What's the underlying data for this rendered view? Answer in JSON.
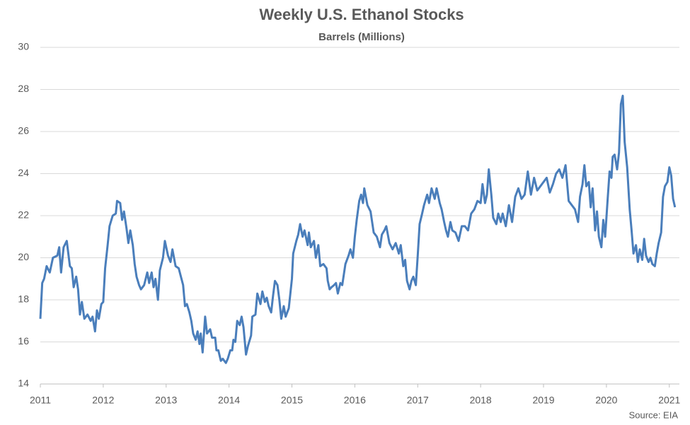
{
  "chart_data": {
    "type": "line",
    "title": "Weekly U.S. Ethanol Stocks",
    "subtitle": "Barrels (Millions)",
    "source": "Source: EIA",
    "xlim": [
      2011,
      2021.16
    ],
    "xticks": [
      2011,
      2012,
      2013,
      2014,
      2015,
      2016,
      2017,
      2018,
      2019,
      2020,
      2021
    ],
    "ylim": [
      14,
      30
    ],
    "yticks": [
      14,
      16,
      18,
      20,
      22,
      24,
      26,
      28,
      30
    ],
    "grid": true,
    "x": [
      2011.0,
      2011.03,
      2011.06,
      2011.1,
      2011.15,
      2011.2,
      2011.27,
      2011.3,
      2011.33,
      2011.37,
      2011.42,
      2011.47,
      2011.5,
      2011.53,
      2011.57,
      2011.6,
      2011.63,
      2011.66,
      2011.7,
      2011.75,
      2011.8,
      2011.83,
      2011.87,
      2011.9,
      2011.93,
      2011.97,
      2012.0,
      2012.03,
      2012.07,
      2012.1,
      2012.15,
      2012.2,
      2012.22,
      2012.27,
      2012.3,
      2012.33,
      2012.37,
      2012.4,
      2012.43,
      2012.47,
      2012.5,
      2012.53,
      2012.57,
      2012.6,
      2012.65,
      2012.7,
      2012.73,
      2012.77,
      2012.8,
      2012.83,
      2012.87,
      2012.9,
      2012.95,
      2012.98,
      2013.03,
      2013.07,
      2013.1,
      2013.15,
      2013.2,
      2013.27,
      2013.3,
      2013.33,
      2013.37,
      2013.4,
      2013.43,
      2013.47,
      2013.5,
      2013.53,
      2013.55,
      2013.58,
      2013.62,
      2013.65,
      2013.7,
      2013.73,
      2013.78,
      2013.8,
      2013.83,
      2013.87,
      2013.9,
      2013.95,
      2013.98,
      2014.02,
      2014.05,
      2014.07,
      2014.1,
      2014.13,
      2014.17,
      2014.2,
      2014.23,
      2014.27,
      2014.3,
      2014.35,
      2014.37,
      2014.42,
      2014.45,
      2014.5,
      2014.53,
      2014.57,
      2014.6,
      2014.63,
      2014.67,
      2014.7,
      2014.73,
      2014.77,
      2014.8,
      2014.83,
      2014.87,
      2014.9,
      2014.95,
      2015.0,
      2015.02,
      2015.07,
      2015.1,
      2015.13,
      2015.17,
      2015.2,
      2015.25,
      2015.27,
      2015.3,
      2015.35,
      2015.38,
      2015.42,
      2015.45,
      2015.5,
      2015.55,
      2015.57,
      2015.6,
      2015.63,
      2015.67,
      2015.7,
      2015.73,
      2015.77,
      2015.8,
      2015.85,
      2015.9,
      2015.93,
      2015.97,
      2016.0,
      2016.03,
      2016.07,
      2016.1,
      2016.13,
      2016.15,
      2016.2,
      2016.25,
      2016.3,
      2016.35,
      2016.4,
      2016.43,
      2016.47,
      2016.5,
      2016.55,
      2016.6,
      2016.65,
      2016.7,
      2016.73,
      2016.77,
      2016.8,
      2016.83,
      2016.87,
      2016.9,
      2016.93,
      2016.97,
      2017.0,
      2017.03,
      2017.07,
      2017.1,
      2017.15,
      2017.18,
      2017.22,
      2017.27,
      2017.3,
      2017.35,
      2017.38,
      2017.42,
      2017.45,
      2017.48,
      2017.52,
      2017.55,
      2017.6,
      2017.65,
      2017.7,
      2017.75,
      2017.8,
      2017.85,
      2017.9,
      2017.95,
      2018.0,
      2018.03,
      2018.07,
      2018.1,
      2018.13,
      2018.17,
      2018.2,
      2018.25,
      2018.28,
      2018.32,
      2018.35,
      2018.4,
      2018.45,
      2018.5,
      2018.55,
      2018.6,
      2018.65,
      2018.7,
      2018.75,
      2018.8,
      2018.85,
      2018.9,
      2018.95,
      2019.0,
      2019.05,
      2019.1,
      2019.15,
      2019.2,
      2019.25,
      2019.3,
      2019.35,
      2019.4,
      2019.45,
      2019.5,
      2019.55,
      2019.58,
      2019.62,
      2019.65,
      2019.68,
      2019.72,
      2019.75,
      2019.78,
      2019.82,
      2019.85,
      2019.88,
      2019.92,
      2019.95,
      2019.98,
      2020.02,
      2020.05,
      2020.08,
      2020.1,
      2020.13,
      2020.17,
      2020.2,
      2020.23,
      2020.26,
      2020.29,
      2020.33,
      2020.37,
      2020.4,
      2020.43,
      2020.47,
      2020.5,
      2020.53,
      2020.57,
      2020.6,
      2020.63,
      2020.67,
      2020.7,
      2020.73,
      2020.77,
      2020.8,
      2020.83,
      2020.87,
      2020.9,
      2020.93,
      2020.97,
      2021.0,
      2021.03,
      2021.06,
      2021.09
    ],
    "series": [
      {
        "name": "Ethanol Stocks",
        "color": "#4a7ebb",
        "values": [
          17.1,
          18.8,
          19.0,
          19.6,
          19.3,
          20.0,
          20.1,
          20.5,
          19.3,
          20.5,
          20.8,
          19.6,
          19.5,
          18.6,
          19.1,
          18.5,
          17.3,
          17.9,
          17.1,
          17.3,
          17.0,
          17.2,
          16.5,
          17.5,
          17.1,
          17.8,
          17.9,
          19.5,
          20.6,
          21.5,
          22.0,
          22.1,
          22.7,
          22.6,
          21.8,
          22.2,
          21.4,
          20.7,
          21.3,
          20.6,
          19.7,
          19.1,
          18.7,
          18.5,
          18.7,
          19.3,
          18.8,
          19.3,
          18.6,
          19.0,
          18.0,
          19.4,
          20.0,
          20.8,
          20.1,
          19.8,
          20.4,
          19.6,
          19.5,
          18.7,
          17.7,
          17.8,
          17.4,
          17.0,
          16.4,
          16.1,
          16.5,
          15.9,
          16.4,
          15.5,
          17.2,
          16.4,
          16.6,
          16.2,
          16.2,
          15.6,
          15.6,
          15.1,
          15.2,
          15.0,
          15.2,
          15.6,
          15.6,
          16.1,
          16.0,
          17.0,
          16.8,
          17.2,
          16.7,
          15.4,
          15.8,
          16.3,
          17.2,
          17.3,
          18.3,
          17.8,
          18.4,
          17.9,
          18.1,
          17.7,
          17.4,
          18.2,
          18.9,
          18.7,
          18.0,
          17.1,
          17.7,
          17.2,
          17.6,
          19.0,
          20.2,
          20.8,
          21.1,
          21.6,
          21.0,
          21.3,
          20.6,
          21.2,
          20.5,
          20.8,
          20.0,
          20.6,
          19.6,
          19.7,
          19.5,
          18.9,
          18.5,
          18.6,
          18.7,
          18.8,
          18.3,
          18.8,
          18.7,
          19.7,
          20.1,
          20.4,
          20.0,
          21.0,
          21.8,
          22.7,
          23.0,
          22.6,
          23.3,
          22.5,
          22.2,
          21.2,
          21.0,
          20.5,
          21.1,
          21.3,
          21.5,
          20.7,
          20.4,
          20.7,
          20.2,
          20.6,
          19.6,
          19.9,
          18.9,
          18.5,
          18.9,
          19.1,
          18.7,
          20.1,
          21.6,
          22.1,
          22.5,
          23.0,
          22.6,
          23.3,
          22.8,
          23.3,
          22.6,
          22.3,
          21.7,
          21.3,
          21.0,
          21.7,
          21.3,
          21.2,
          20.8,
          21.5,
          21.5,
          21.3,
          22.1,
          22.3,
          22.7,
          22.6,
          23.5,
          22.6,
          23.0,
          24.2,
          23.0,
          21.9,
          21.6,
          22.1,
          21.7,
          22.1,
          21.5,
          22.5,
          21.7,
          22.9,
          23.3,
          22.8,
          23.0,
          24.1,
          23.0,
          23.8,
          23.2,
          23.4,
          23.6,
          23.8,
          23.1,
          23.5,
          24.0,
          24.2,
          23.8,
          24.4,
          22.7,
          22.5,
          22.3,
          21.7,
          22.9,
          23.5,
          24.4,
          23.4,
          23.6,
          22.4,
          23.3,
          21.3,
          22.2,
          21.0,
          20.5,
          21.8,
          21.0,
          22.8,
          24.1,
          23.8,
          24.8,
          24.9,
          24.2,
          25.0,
          27.3,
          27.7,
          25.5,
          24.3,
          22.3,
          21.3,
          20.2,
          20.6,
          19.8,
          20.4,
          19.9,
          20.9,
          20.1,
          19.8,
          20.0,
          19.7,
          19.6,
          20.2,
          20.7,
          21.2,
          22.9,
          23.4,
          23.6,
          24.3,
          23.9,
          22.8,
          22.4
        ]
      }
    ]
  }
}
